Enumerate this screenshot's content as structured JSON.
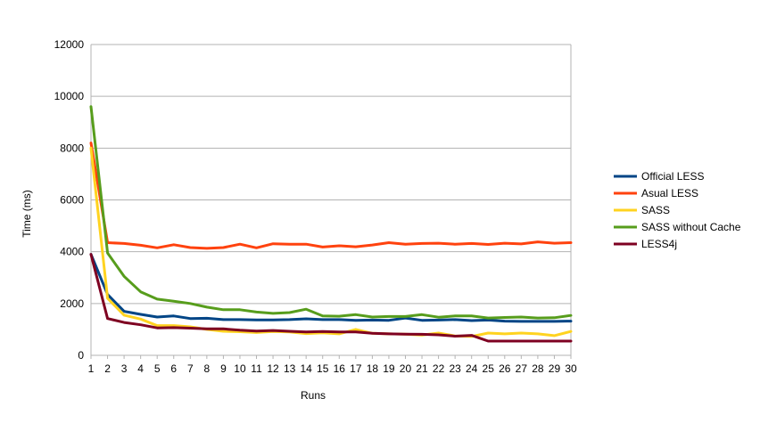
{
  "chart_data": {
    "type": "line",
    "title": "",
    "xlabel": "Runs",
    "ylabel": "Time (ms)",
    "ylim": [
      0,
      12000
    ],
    "yticks": [
      0,
      2000,
      4000,
      6000,
      8000,
      10000,
      12000
    ],
    "grid": "horizontal",
    "legend_position": "right",
    "x": [
      1,
      2,
      3,
      4,
      5,
      6,
      7,
      8,
      9,
      10,
      11,
      12,
      13,
      14,
      15,
      16,
      17,
      18,
      19,
      20,
      21,
      22,
      23,
      24,
      25,
      26,
      27,
      28,
      29,
      30
    ],
    "series": [
      {
        "name": "Official LESS",
        "color": "#004586",
        "values": [
          3900,
          2350,
          1700,
          1580,
          1480,
          1520,
          1420,
          1430,
          1380,
          1380,
          1370,
          1370,
          1380,
          1410,
          1380,
          1380,
          1350,
          1360,
          1350,
          1440,
          1350,
          1360,
          1380,
          1340,
          1360,
          1320,
          1310,
          1310,
          1310,
          1320
        ]
      },
      {
        "name": "Asual LESS",
        "color": "#ff420e",
        "values": [
          8200,
          4350,
          4320,
          4250,
          4150,
          4270,
          4160,
          4130,
          4160,
          4290,
          4150,
          4310,
          4290,
          4290,
          4180,
          4230,
          4190,
          4260,
          4350,
          4290,
          4320,
          4330,
          4290,
          4320,
          4280,
          4330,
          4300,
          4380,
          4330,
          4350
        ]
      },
      {
        "name": "SASS",
        "color": "#ffd320",
        "values": [
          8000,
          2200,
          1550,
          1400,
          1150,
          1150,
          1100,
          1000,
          930,
          910,
          880,
          920,
          900,
          840,
          870,
          830,
          1000,
          850,
          830,
          820,
          780,
          860,
          750,
          730,
          860,
          830,
          860,
          830,
          760,
          920
        ]
      },
      {
        "name": "SASS without Cache",
        "color": "#579d1c",
        "values": [
          9600,
          3950,
          3050,
          2450,
          2170,
          2090,
          2000,
          1860,
          1760,
          1760,
          1670,
          1620,
          1650,
          1780,
          1520,
          1510,
          1570,
          1480,
          1500,
          1500,
          1570,
          1470,
          1520,
          1520,
          1440,
          1460,
          1480,
          1440,
          1450,
          1540
        ]
      },
      {
        "name": "LESS4j",
        "color": "#7e0021",
        "values": [
          3900,
          1420,
          1270,
          1180,
          1060,
          1070,
          1050,
          1020,
          1020,
          970,
          940,
          960,
          930,
          900,
          920,
          900,
          900,
          850,
          830,
          820,
          810,
          790,
          740,
          770,
          550,
          550,
          550,
          550,
          550,
          550
        ]
      }
    ]
  }
}
